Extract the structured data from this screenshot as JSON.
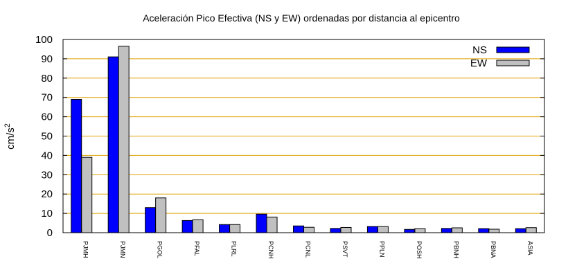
{
  "chart_data": {
    "type": "bar",
    "title": "Aceleración Pico Efectiva (NS y EW) ordenadas por distancia al epicentro",
    "ylabel_base": "cm/s",
    "ylabel_exp": "2",
    "xlabel": "",
    "ylim": [
      0,
      100
    ],
    "yticks": [
      0,
      10,
      20,
      30,
      40,
      50,
      60,
      70,
      80,
      90,
      100
    ],
    "ytick_labels": [
      "0",
      "10",
      "20",
      "30",
      "40",
      "50",
      "60",
      "70",
      "80",
      "90",
      "100"
    ],
    "grid": true,
    "grid_color": "#e0a000",
    "legend_position": "top-right",
    "categories": [
      "PJMH",
      "PJMN",
      "PGOL",
      "PFAL",
      "PLRL",
      "PCNH",
      "PCNL",
      "PSVT",
      "PPLN",
      "POSH",
      "PBNH",
      "PBNA",
      "ASIA"
    ],
    "series": [
      {
        "name": "NS",
        "color": "#0000ff",
        "values": [
          69,
          91,
          13,
          6.3,
          4.2,
          9.6,
          3.5,
          2.2,
          3.2,
          1.7,
          2.2,
          2.1,
          2.1
        ]
      },
      {
        "name": "EW",
        "color": "#c0c0c0",
        "values": [
          39,
          96.5,
          18,
          6.7,
          4.2,
          8.1,
          2.8,
          2.7,
          3.2,
          2.1,
          2.5,
          1.8,
          2.6
        ]
      }
    ]
  }
}
